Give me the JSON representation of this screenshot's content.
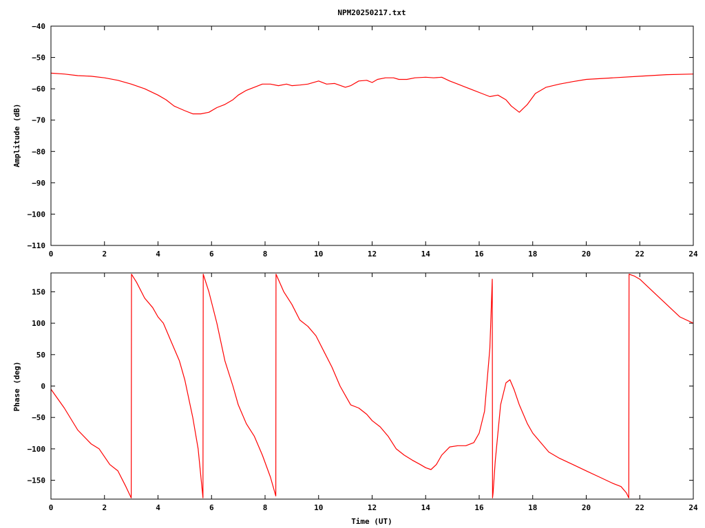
{
  "chart_data": [
    {
      "type": "line",
      "title": "NPM20250217.txt",
      "xlabel": "",
      "ylabel": "Amplitude (dB)",
      "xlim": [
        0,
        24
      ],
      "ylim": [
        -110,
        -40
      ],
      "xticks": [
        0,
        2,
        4,
        6,
        8,
        10,
        12,
        14,
        16,
        18,
        20,
        22,
        24
      ],
      "yticks": [
        -110,
        -100,
        -90,
        -80,
        -70,
        -60,
        -50,
        -40
      ],
      "grid": false,
      "color": "#ff0000",
      "series": [
        {
          "x": [
            0,
            0.5,
            1,
            1.5,
            2,
            2.5,
            3,
            3.5,
            4,
            4.3,
            4.6,
            5,
            5.3,
            5.6,
            5.9,
            6.2,
            6.5,
            6.8,
            7,
            7.3,
            7.6,
            7.9,
            8.2,
            8.5,
            8.8,
            9,
            9.3,
            9.6,
            10,
            10.3,
            10.6,
            11,
            11.2,
            11.5,
            11.8,
            12,
            12.2,
            12.5,
            12.8,
            13,
            13.3,
            13.6,
            14,
            14.3,
            14.6,
            14.9,
            15.2,
            15.5,
            15.8,
            16.1,
            16.4,
            16.7,
            17,
            17.2,
            17.5,
            17.8,
            18.1,
            18.5,
            19,
            19.5,
            20,
            21,
            22,
            23,
            24
          ],
          "y": [
            -55,
            -55.3,
            -55.8,
            -56,
            -56.5,
            -57.3,
            -58.5,
            -60,
            -62,
            -63.5,
            -65.5,
            -67,
            -68,
            -68,
            -67.5,
            -66,
            -65,
            -63.5,
            -62,
            -60.5,
            -59.5,
            -58.5,
            -58.5,
            -59,
            -58.5,
            -59,
            -58.8,
            -58.5,
            -57.5,
            -58.5,
            -58.3,
            -59.5,
            -59,
            -57.5,
            -57.3,
            -58,
            -57,
            -56.5,
            -56.5,
            -57,
            -57,
            -56.5,
            -56.3,
            -56.5,
            -56.3,
            -57.5,
            -58.5,
            -59.5,
            -60.5,
            -61.5,
            -62.5,
            -62,
            -63.5,
            -65.5,
            -67.5,
            -65,
            -61.5,
            -59.5,
            -58.5,
            -57.7,
            -57,
            -56.5,
            -56,
            -55.5,
            -55.3
          ]
        }
      ]
    },
    {
      "type": "line",
      "title": "",
      "xlabel": "Time (UT)",
      "ylabel": "Phase (deg)",
      "xlim": [
        0,
        24
      ],
      "ylim": [
        -180,
        180
      ],
      "xticks": [
        0,
        2,
        4,
        6,
        8,
        10,
        12,
        14,
        16,
        18,
        20,
        22,
        24
      ],
      "yticks": [
        -150,
        -100,
        -50,
        0,
        50,
        100,
        150
      ],
      "grid": false,
      "color": "#ff0000",
      "series": [
        {
          "x": [
            0,
            0.5,
            1,
            1.5,
            1.8,
            2.2,
            2.5,
            2.8,
            3,
            3.01,
            3.2,
            3.5,
            3.8,
            4,
            4.2,
            4.5,
            4.8,
            5,
            5.3,
            5.5,
            5.68,
            5.69,
            5.9,
            6.2,
            6.5,
            6.8,
            7,
            7.3,
            7.6,
            7.9,
            8.2,
            8.4,
            8.41,
            8.7,
            9,
            9.3,
            9.6,
            9.9,
            10.2,
            10.5,
            10.8,
            11,
            11.2,
            11.5,
            11.8,
            12,
            12.3,
            12.6,
            12.9,
            13.2,
            13.5,
            13.8,
            14,
            14.2,
            14.4,
            14.6,
            14.9,
            15.2,
            15.5,
            15.8,
            16,
            16.2,
            16.4,
            16.49,
            16.5,
            16.52,
            16.6,
            16.8,
            17,
            17.15,
            17.3,
            17.5,
            17.8,
            18,
            18.3,
            18.6,
            19,
            19.5,
            20,
            20.5,
            21,
            21.3,
            21.5,
            21.59,
            21.6,
            21.8,
            22,
            22.5,
            23,
            23.5,
            24
          ],
          "y": [
            -5,
            -35,
            -70,
            -92,
            -100,
            -125,
            -135,
            -160,
            -178,
            178,
            165,
            140,
            125,
            110,
            100,
            70,
            40,
            10,
            -50,
            -100,
            -178,
            178,
            150,
            100,
            40,
            0,
            -30,
            -60,
            -80,
            -110,
            -145,
            -175,
            178,
            150,
            130,
            105,
            95,
            80,
            55,
            30,
            0,
            -15,
            -30,
            -35,
            -45,
            -55,
            -65,
            -80,
            -100,
            -110,
            -118,
            -125,
            -130,
            -133,
            -125,
            -110,
            -97,
            -95,
            -95,
            -90,
            -75,
            -40,
            60,
            170,
            -178,
            -170,
            -120,
            -30,
            5,
            10,
            -5,
            -30,
            -60,
            -75,
            -90,
            -105,
            -115,
            -125,
            -135,
            -145,
            -155,
            -160,
            -170,
            -178,
            178,
            175,
            170,
            150,
            130,
            110,
            100
          ]
        }
      ]
    }
  ]
}
